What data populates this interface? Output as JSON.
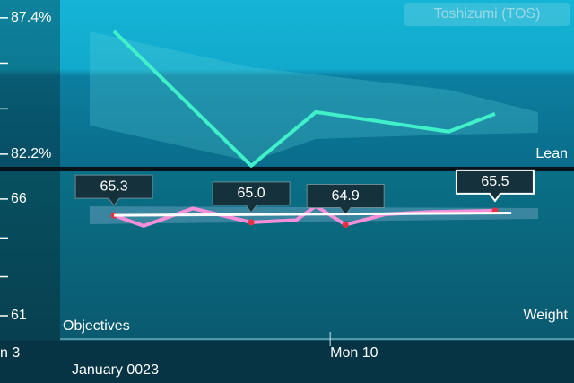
{
  "app_title": "Toshizumi (TOS)",
  "objectives_label": "Objectives",
  "month_label": "January 0023",
  "chart_data": [
    {
      "type": "line",
      "ylabel": "Lean",
      "xlim": [
        3.31,
        14.94
      ],
      "ylim": [
        81.65,
        88.08
      ],
      "yticks": [
        {
          "value": 87.4,
          "label": "87.4%"
        },
        {
          "value": 85.67,
          "label": null
        },
        {
          "value": 83.93,
          "label": null
        },
        {
          "value": 82.2,
          "label": "82.2%"
        }
      ],
      "series": [
        {
          "color": "#3ff0c8",
          "x": [
            5.62,
            8.4,
            9.71,
            12.4,
            13.34
          ],
          "values": [
            86.89,
            81.76,
            83.81,
            83.06,
            83.74
          ]
        }
      ]
    },
    {
      "type": "line",
      "ylabel": "Weight",
      "xlim": [
        3.31,
        14.94
      ],
      "xticks": [
        {
          "value": 3,
          "label": "n 3"
        },
        {
          "value": 10,
          "label": "Mon 10"
        }
      ],
      "ylim": [
        60,
        67.15
      ],
      "yticks": [
        66,
        {
          "value": 64.33,
          "label": null
        },
        {
          "value": 62.67,
          "label": null
        },
        61
      ],
      "series": [
        {
          "color": "#f48fd8",
          "x": [
            5.62,
            6.22,
            7.22,
            8.4,
            9.31,
            9.71,
            10.31,
            11.13,
            12.03,
            13.34
          ],
          "values": [
            65.3,
            64.85,
            65.6,
            65.0,
            65.1,
            65.7,
            64.9,
            65.35,
            65.45,
            65.5
          ],
          "value_labels": [
            "65.3",
            null,
            null,
            "65.0",
            null,
            null,
            "64.9",
            null,
            null,
            "65.5"
          ]
        },
        {
          "color": "#ffffff",
          "x": [
            5.62,
            13.67
          ],
          "values": [
            65.3,
            65.4
          ]
        }
      ]
    }
  ]
}
